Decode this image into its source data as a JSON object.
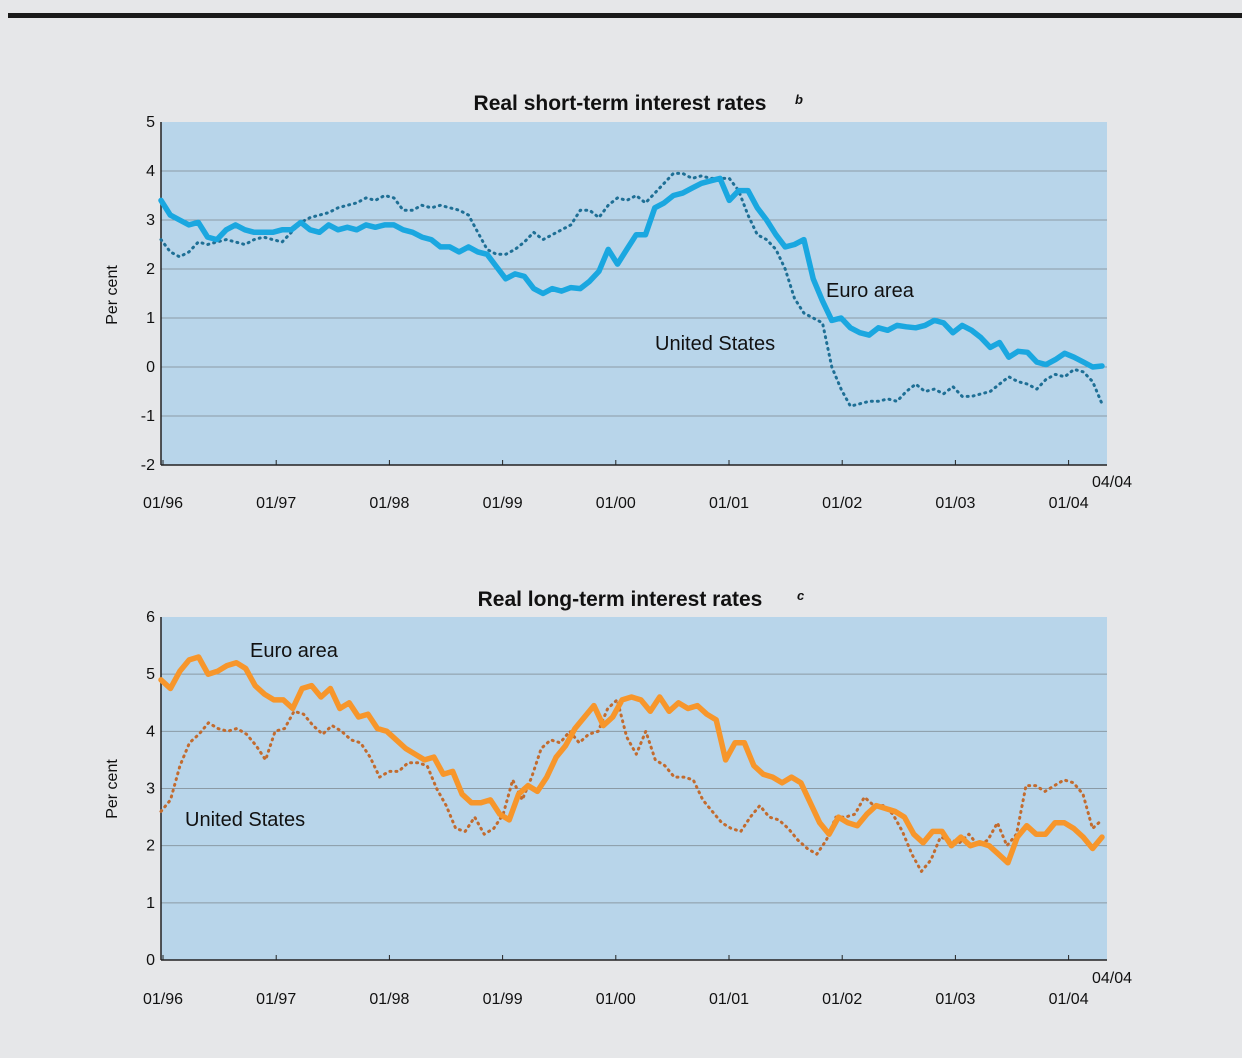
{
  "chart_data": [
    {
      "type": "line",
      "title": "Real short-term interest rates",
      "title_note": "b",
      "ylabel": "Per cent",
      "ylim": [
        -2,
        5
      ],
      "yticks": [
        "5",
        "4",
        "3",
        "2",
        "1",
        "0",
        "-1",
        "-2"
      ],
      "xticks": [
        "01/96",
        "01/97",
        "01/98",
        "01/99",
        "01/00",
        "01/01",
        "01/02",
        "01/03",
        "01/04"
      ],
      "end_label": "04/04",
      "grid": true,
      "annotations": [
        "Euro area",
        "United States"
      ],
      "series": [
        {
          "name": "Euro area",
          "color": "#1aa7e0",
          "style": "solid",
          "values": [
            3.4,
            3.1,
            3.0,
            2.9,
            2.95,
            2.65,
            2.6,
            2.8,
            2.9,
            2.8,
            2.75,
            2.75,
            2.75,
            2.8,
            2.8,
            2.95,
            2.8,
            2.75,
            2.9,
            2.8,
            2.85,
            2.8,
            2.9,
            2.85,
            2.9,
            2.9,
            2.8,
            2.75,
            2.65,
            2.6,
            2.45,
            2.45,
            2.35,
            2.45,
            2.35,
            2.3,
            2.05,
            1.8,
            1.9,
            1.85,
            1.6,
            1.5,
            1.6,
            1.55,
            1.62,
            1.6,
            1.75,
            1.95,
            2.4,
            2.1,
            2.4,
            2.7,
            2.7,
            3.25,
            3.35,
            3.5,
            3.55,
            3.65,
            3.75,
            3.8,
            3.85,
            3.4,
            3.6,
            3.6,
            3.25,
            3.0,
            2.7,
            2.45,
            2.5,
            2.6,
            1.8,
            1.35,
            0.95,
            1.0,
            0.8,
            0.7,
            0.65,
            0.8,
            0.75,
            0.85,
            0.82,
            0.8,
            0.85,
            0.95,
            0.9,
            0.7,
            0.85,
            0.75,
            0.6,
            0.4,
            0.5,
            0.2,
            0.32,
            0.3,
            0.1,
            0.05,
            0.15,
            0.28,
            0.2,
            0.1,
            0.0,
            0.02
          ]
        },
        {
          "name": "United States",
          "color": "#1e6f95",
          "style": "dotted",
          "values": [
            2.6,
            2.35,
            2.25,
            2.35,
            2.55,
            2.5,
            2.55,
            2.6,
            2.55,
            2.5,
            2.6,
            2.65,
            2.6,
            2.55,
            2.75,
            2.95,
            3.05,
            3.1,
            3.15,
            3.25,
            3.3,
            3.35,
            3.45,
            3.4,
            3.5,
            3.45,
            3.2,
            3.2,
            3.3,
            3.25,
            3.3,
            3.25,
            3.2,
            3.1,
            2.75,
            2.4,
            2.3,
            2.3,
            2.4,
            2.55,
            2.75,
            2.6,
            2.7,
            2.8,
            2.9,
            3.2,
            3.2,
            3.05,
            3.3,
            3.45,
            3.4,
            3.5,
            3.35,
            3.55,
            3.75,
            3.95,
            3.95,
            3.85,
            3.9,
            3.85,
            3.85,
            3.85,
            3.6,
            3.1,
            2.7,
            2.6,
            2.4,
            2.0,
            1.4,
            1.1,
            1.0,
            0.9,
            0.0,
            -0.45,
            -0.8,
            -0.75,
            -0.7,
            -0.7,
            -0.65,
            -0.7,
            -0.5,
            -0.35,
            -0.5,
            -0.45,
            -0.55,
            -0.4,
            -0.6,
            -0.6,
            -0.55,
            -0.5,
            -0.35,
            -0.2,
            -0.3,
            -0.35,
            -0.45,
            -0.25,
            -0.15,
            -0.2,
            -0.05,
            -0.1,
            -0.3,
            -0.75
          ]
        }
      ]
    },
    {
      "type": "line",
      "title": "Real long-term interest rates",
      "title_note": "c",
      "ylabel": "Per cent",
      "ylim": [
        0,
        6
      ],
      "yticks": [
        "6",
        "5",
        "4",
        "3",
        "2",
        "1",
        "0"
      ],
      "xticks": [
        "01/96",
        "01/97",
        "01/98",
        "01/99",
        "01/00",
        "01/01",
        "01/02",
        "01/03",
        "01/04"
      ],
      "end_label": "04/04",
      "grid": true,
      "annotations": [
        "Euro area",
        "United States"
      ],
      "series": [
        {
          "name": "Euro area",
          "color": "#f7962b",
          "style": "solid",
          "values": [
            4.9,
            4.75,
            5.05,
            5.25,
            5.3,
            5.0,
            5.05,
            5.15,
            5.2,
            5.1,
            4.8,
            4.65,
            4.55,
            4.55,
            4.4,
            4.75,
            4.8,
            4.6,
            4.75,
            4.4,
            4.5,
            4.25,
            4.3,
            4.05,
            4.0,
            3.85,
            3.7,
            3.6,
            3.5,
            3.55,
            3.25,
            3.3,
            2.9,
            2.75,
            2.75,
            2.8,
            2.55,
            2.45,
            2.9,
            3.05,
            2.95,
            3.2,
            3.55,
            3.75,
            4.05,
            4.25,
            4.45,
            4.1,
            4.25,
            4.55,
            4.6,
            4.55,
            4.35,
            4.6,
            4.35,
            4.5,
            4.4,
            4.45,
            4.3,
            4.2,
            3.5,
            3.8,
            3.8,
            3.4,
            3.25,
            3.2,
            3.1,
            3.2,
            3.1,
            2.75,
            2.4,
            2.2,
            2.5,
            2.4,
            2.35,
            2.55,
            2.7,
            2.65,
            2.6,
            2.5,
            2.2,
            2.05,
            2.25,
            2.25,
            2.0,
            2.15,
            2.0,
            2.05,
            2.0,
            1.85,
            1.7,
            2.15,
            2.35,
            2.2,
            2.2,
            2.4,
            2.4,
            2.3,
            2.15,
            1.95,
            2.15
          ]
        },
        {
          "name": "United States",
          "color": "#c26b2e",
          "style": "dotted",
          "values": [
            2.6,
            2.8,
            3.4,
            3.8,
            3.95,
            4.15,
            4.05,
            4.0,
            4.05,
            3.95,
            3.75,
            3.5,
            4.0,
            4.05,
            4.35,
            4.3,
            4.1,
            3.95,
            4.1,
            4.0,
            3.85,
            3.8,
            3.55,
            3.2,
            3.3,
            3.3,
            3.45,
            3.45,
            3.4,
            3.0,
            2.7,
            2.3,
            2.25,
            2.5,
            2.2,
            2.3,
            2.55,
            3.15,
            2.8,
            3.2,
            3.7,
            3.85,
            3.8,
            4.0,
            3.8,
            3.95,
            4.0,
            4.4,
            4.55,
            3.9,
            3.6,
            4.0,
            3.5,
            3.4,
            3.2,
            3.2,
            3.15,
            2.8,
            2.6,
            2.4,
            2.3,
            2.25,
            2.5,
            2.7,
            2.5,
            2.45,
            2.3,
            2.1,
            1.95,
            1.85,
            2.1,
            2.5,
            2.5,
            2.55,
            2.85,
            2.7,
            2.7,
            2.55,
            2.25,
            1.85,
            1.55,
            1.75,
            2.15,
            2.1,
            2.05,
            2.2,
            2.0,
            2.1,
            2.4,
            2.0,
            2.2,
            3.05,
            3.05,
            2.95,
            3.05,
            3.15,
            3.1,
            2.9,
            2.3,
            2.45
          ]
        }
      ]
    }
  ]
}
